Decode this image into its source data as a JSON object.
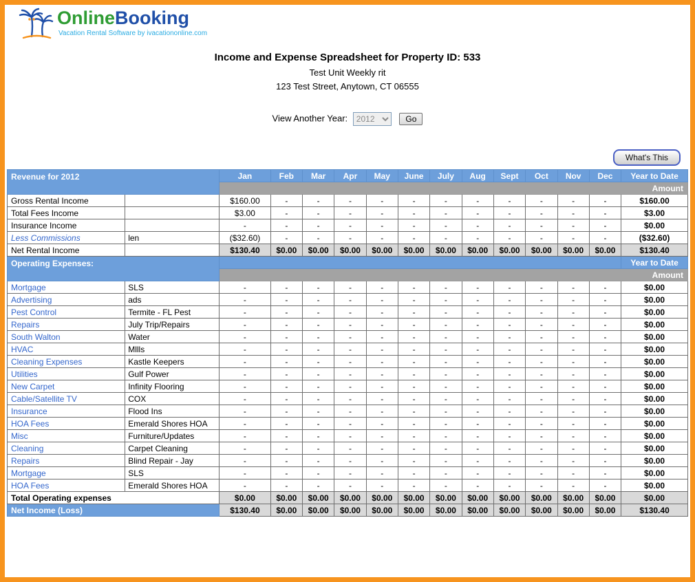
{
  "logo": {
    "brand_online": "Online",
    "brand_booking": "Booking",
    "tagline": "Vacation Rental Software by ivacationonline.com"
  },
  "header": {
    "title": "Income and Expense Spreadsheet for Property ID: 533",
    "property_name": "Test Unit Weekly rit",
    "property_address": "123 Test Street, Anytown, CT 06555"
  },
  "year_selector": {
    "label": "View Another Year:",
    "selected_year": "2012",
    "go_button": "Go"
  },
  "whats_this_button": "What's This",
  "table": {
    "revenue_section_title": "Revenue for 2012",
    "expenses_section_title": "Operating Expenses:",
    "months": [
      "Jan",
      "Feb",
      "Mar",
      "Apr",
      "May",
      "June",
      "July",
      "Aug",
      "Sept",
      "Oct",
      "Nov",
      "Dec"
    ],
    "ytd_header": "Year to Date",
    "amount_header": "Amount",
    "revenue_rows": [
      {
        "label": "Gross Rental Income",
        "note": "",
        "link": false,
        "italic": false,
        "shaded": false,
        "values": [
          "$160.00",
          "-",
          "-",
          "-",
          "-",
          "-",
          "-",
          "-",
          "-",
          "-",
          "-",
          "-"
        ],
        "ytd": "$160.00"
      },
      {
        "label": "Total Fees Income",
        "note": "",
        "link": false,
        "italic": false,
        "shaded": false,
        "values": [
          "$3.00",
          "-",
          "-",
          "-",
          "-",
          "-",
          "-",
          "-",
          "-",
          "-",
          "-",
          "-"
        ],
        "ytd": "$3.00"
      },
      {
        "label": "Insurance Income",
        "note": "",
        "link": false,
        "italic": false,
        "shaded": false,
        "values": [
          "-",
          "-",
          "-",
          "-",
          "-",
          "-",
          "-",
          "-",
          "-",
          "-",
          "-",
          "-"
        ],
        "ytd": "$0.00"
      },
      {
        "label": "Less Commissions",
        "note": "len",
        "link": true,
        "italic": true,
        "shaded": false,
        "values": [
          "($32.60)",
          "-",
          "-",
          "-",
          "-",
          "-",
          "-",
          "-",
          "-",
          "-",
          "-",
          "-"
        ],
        "ytd": "($32.60)"
      },
      {
        "label": "Net Rental Income",
        "note": "",
        "link": false,
        "italic": false,
        "shaded": true,
        "values": [
          "$130.40",
          "$0.00",
          "$0.00",
          "$0.00",
          "$0.00",
          "$0.00",
          "$0.00",
          "$0.00",
          "$0.00",
          "$0.00",
          "$0.00",
          "$0.00"
        ],
        "ytd": "$130.40"
      }
    ],
    "expense_rows": [
      {
        "label": "Mortgage",
        "note": "SLS"
      },
      {
        "label": "Advertising",
        "note": "ads"
      },
      {
        "label": "Pest Control",
        "note": "Termite - FL Pest"
      },
      {
        "label": "Repairs",
        "note": "July Trip/Repairs"
      },
      {
        "label": "South Walton",
        "note": "Water"
      },
      {
        "label": "HVAC",
        "note": "Mllls"
      },
      {
        "label": "Cleaning Expenses",
        "note": "Kastle Keepers"
      },
      {
        "label": "Utilities",
        "note": "Gulf Power"
      },
      {
        "label": "New Carpet",
        "note": "Infinity Flooring"
      },
      {
        "label": "Cable/Satellite TV",
        "note": "COX"
      },
      {
        "label": "Insurance",
        "note": "Flood Ins"
      },
      {
        "label": "HOA Fees",
        "note": "Emerald Shores HOA"
      },
      {
        "label": "Misc",
        "note": "Furniture/Updates"
      },
      {
        "label": "Cleaning",
        "note": "Carpet Cleaning"
      },
      {
        "label": "Repairs",
        "note": "Blind Repair - Jay"
      },
      {
        "label": "Mortgage",
        "note": "SLS"
      },
      {
        "label": "HOA Fees",
        "note": "Emerald Shores HOA"
      }
    ],
    "expense_dash": "-",
    "expense_ytd": "$0.00",
    "total_row": {
      "label": "Total Operating expenses",
      "values": [
        "$0.00",
        "$0.00",
        "$0.00",
        "$0.00",
        "$0.00",
        "$0.00",
        "$0.00",
        "$0.00",
        "$0.00",
        "$0.00",
        "$0.00",
        "$0.00"
      ],
      "ytd": "$0.00"
    },
    "net_income_row": {
      "label": "Net Income (Loss)",
      "values": [
        "$130.40",
        "$0.00",
        "$0.00",
        "$0.00",
        "$0.00",
        "$0.00",
        "$0.00",
        "$0.00",
        "$0.00",
        "$0.00",
        "$0.00",
        "$0.00"
      ],
      "ytd": "$130.40"
    }
  },
  "colors": {
    "frame": "#F7941E",
    "blue": "#6D9FDB",
    "gray": "#A3A3A3",
    "shade": "#D9D9D9",
    "link": "#3366CC"
  }
}
